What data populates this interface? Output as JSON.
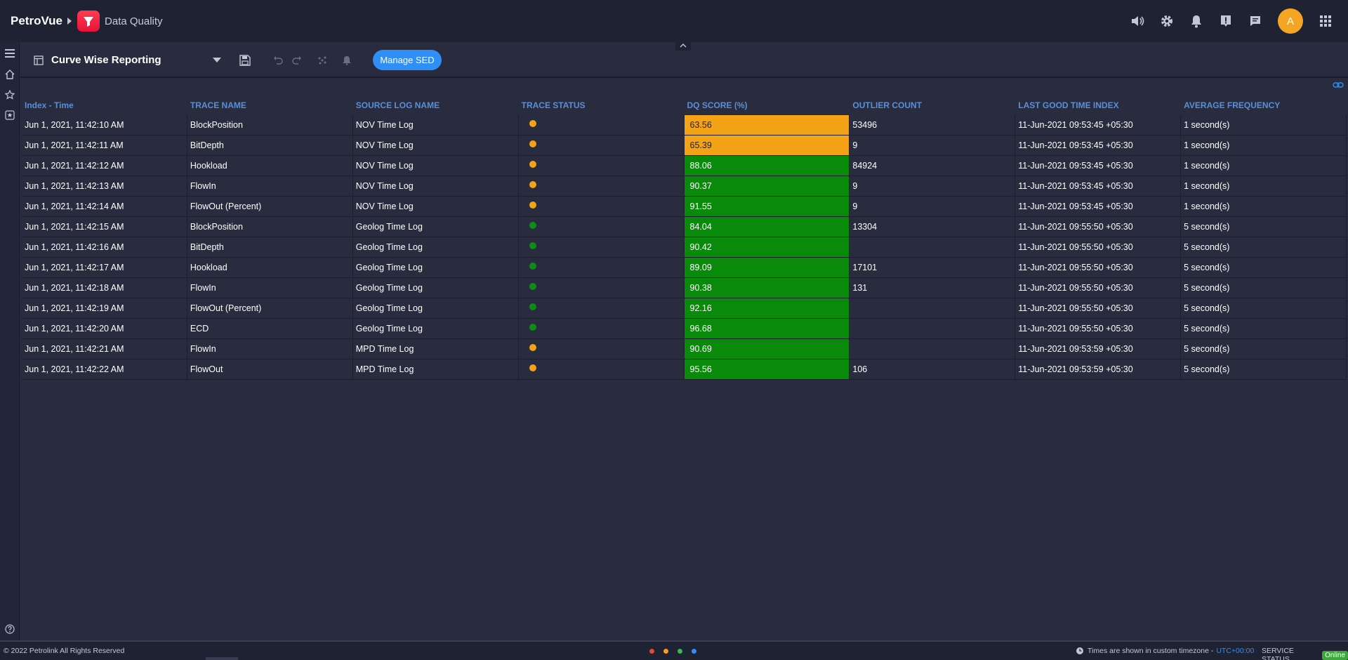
{
  "header": {
    "brand": "PetroVue",
    "app_name": "Data Quality",
    "avatar_initial": "A",
    "icons": [
      "speaker-icon",
      "gear-icon",
      "bell-icon",
      "alert-icon",
      "chat-icon",
      "apps-grid-icon"
    ]
  },
  "sidebar": {
    "icons": [
      "menu-icon",
      "home-icon",
      "star-icon",
      "star-box-icon",
      "help-icon"
    ]
  },
  "toolbar": {
    "title": "Curve Wise Reporting",
    "manage_button": "Manage SED"
  },
  "table": {
    "columns": [
      "Index - Time",
      "TRACE NAME",
      "SOURCE LOG NAME",
      "TRACE STATUS",
      "DQ SCORE (%)",
      "OUTLIER COUNT",
      "LAST GOOD TIME INDEX",
      "AVERAGE FREQUENCY"
    ],
    "rows": [
      {
        "time": "Jun 1, 2021, 11:42:10 AM",
        "trace": "BlockPosition",
        "source": "NOV Time Log",
        "status": "orange",
        "score": "63.56",
        "score_color": "amber",
        "outliers": "53496",
        "last_good": "11-Jun-2021 09:53:45 +05:30",
        "freq": "1 second(s)"
      },
      {
        "time": "Jun 1, 2021, 11:42:11 AM",
        "trace": "BitDepth",
        "source": "NOV Time Log",
        "status": "orange",
        "score": "65.39",
        "score_color": "amber",
        "outliers": "9",
        "last_good": "11-Jun-2021 09:53:45 +05:30",
        "freq": "1 second(s)"
      },
      {
        "time": "Jun 1, 2021, 11:42:12 AM",
        "trace": "Hookload",
        "source": "NOV Time Log",
        "status": "orange",
        "score": "88.06",
        "score_color": "green",
        "outliers": "84924",
        "last_good": "11-Jun-2021 09:53:45 +05:30",
        "freq": "1 second(s)"
      },
      {
        "time": "Jun 1, 2021, 11:42:13 AM",
        "trace": "FlowIn",
        "source": "NOV Time Log",
        "status": "orange",
        "score": "90.37",
        "score_color": "green",
        "outliers": "9",
        "last_good": "11-Jun-2021 09:53:45 +05:30",
        "freq": "1 second(s)"
      },
      {
        "time": "Jun 1, 2021, 11:42:14 AM",
        "trace": "FlowOut (Percent)",
        "source": "NOV Time Log",
        "status": "orange",
        "score": "91.55",
        "score_color": "green",
        "outliers": "9",
        "last_good": "11-Jun-2021 09:53:45 +05:30",
        "freq": "1 second(s)"
      },
      {
        "time": "Jun 1, 2021, 11:42:15 AM",
        "trace": "BlockPosition",
        "source": "Geolog Time Log",
        "status": "green",
        "score": "84.04",
        "score_color": "green",
        "outliers": "13304",
        "last_good": "11-Jun-2021 09:55:50 +05:30",
        "freq": "5 second(s)"
      },
      {
        "time": "Jun 1, 2021, 11:42:16 AM",
        "trace": "BitDepth",
        "source": "Geolog Time Log",
        "status": "green",
        "score": "90.42",
        "score_color": "green",
        "outliers": "",
        "last_good": "11-Jun-2021 09:55:50 +05:30",
        "freq": "5 second(s)"
      },
      {
        "time": "Jun 1, 2021, 11:42:17 AM",
        "trace": "Hookload",
        "source": "Geolog Time Log",
        "status": "green",
        "score": "89.09",
        "score_color": "green",
        "outliers": "17101",
        "last_good": "11-Jun-2021 09:55:50 +05:30",
        "freq": "5 second(s)"
      },
      {
        "time": "Jun 1, 2021, 11:42:18 AM",
        "trace": "FlowIn",
        "source": "Geolog Time Log",
        "status": "green",
        "score": "90.38",
        "score_color": "green",
        "outliers": "131",
        "last_good": "11-Jun-2021 09:55:50 +05:30",
        "freq": "5 second(s)"
      },
      {
        "time": "Jun 1, 2021, 11:42:19 AM",
        "trace": "FlowOut (Percent)",
        "source": "Geolog Time Log",
        "status": "green",
        "score": "92.16",
        "score_color": "green",
        "outliers": "",
        "last_good": "11-Jun-2021 09:55:50 +05:30",
        "freq": "5 second(s)"
      },
      {
        "time": "Jun 1, 2021, 11:42:20 AM",
        "trace": "ECD",
        "source": "Geolog Time Log",
        "status": "green",
        "score": "96.68",
        "score_color": "green",
        "outliers": "",
        "last_good": "11-Jun-2021 09:55:50 +05:30",
        "freq": "5 second(s)"
      },
      {
        "time": "Jun 1, 2021, 11:42:21 AM",
        "trace": "FlowIn",
        "source": "MPD Time Log",
        "status": "orange",
        "score": "90.69",
        "score_color": "green",
        "outliers": "",
        "last_good": "11-Jun-2021 09:53:59 +05:30",
        "freq": "5 second(s)"
      },
      {
        "time": "Jun 1, 2021, 11:42:22 AM",
        "trace": "FlowOut",
        "source": "MPD Time Log",
        "status": "orange",
        "score": "95.56",
        "score_color": "green",
        "outliers": "106",
        "last_good": "11-Jun-2021 09:53:59 +05:30",
        "freq": "5 second(s)"
      }
    ]
  },
  "colors": {
    "amber": "#f5a316",
    "green": "#0a8a0a",
    "dot_orange": "#f5a316",
    "dot_green": "#0f8c16",
    "accent": "#2f8ff6"
  },
  "footer": {
    "copyright": "© 2022 Petrolink All Rights Reserved",
    "dots": [
      "#e8453c",
      "#f5a316",
      "#3db84a",
      "#2f8ff6"
    ],
    "timezone_text": "Times are shown in custom timezone -",
    "timezone_link": "UTC+00:00",
    "service_label": "SERVICE STATUS",
    "service_state": "Online"
  }
}
